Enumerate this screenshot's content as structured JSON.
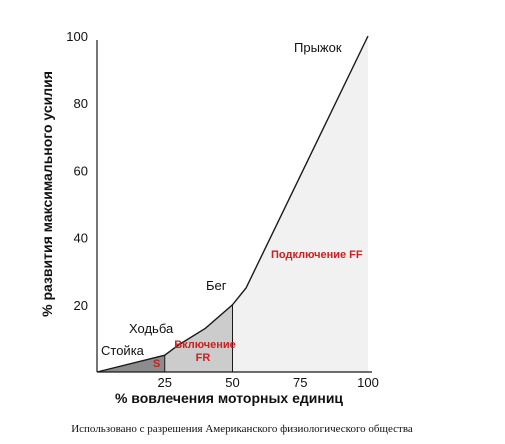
{
  "chart_data": {
    "type": "area",
    "xlabel": "% вовлечения моторных единиц",
    "ylabel": "% развития максимального усилия",
    "xlim": [
      0,
      100
    ],
    "ylim": [
      0,
      100
    ],
    "x_ticks": [
      25,
      50,
      75,
      100
    ],
    "y_ticks": [
      20,
      40,
      60,
      80,
      100
    ],
    "series": [
      {
        "x": [
          0,
          25,
          30,
          40,
          50,
          55,
          100
        ],
        "y": [
          0,
          5,
          8,
          13,
          20,
          25,
          100
        ]
      }
    ],
    "regions": [
      {
        "label": "S",
        "x_from": 0,
        "x_to": 25,
        "color": "#8c8c8c"
      },
      {
        "label": "Включение FR",
        "x_from": 25,
        "x_to": 50,
        "color": "#cccccc"
      },
      {
        "label": "Подключение FF",
        "x_from": 50,
        "x_to": 100,
        "color": "#f1f1f1"
      }
    ],
    "annotations": {
      "stance": "Стойка",
      "walk": "Ходьба",
      "run": "Бег",
      "jump": "Прыжок",
      "s_label": "S",
      "fr_line1": "Включение",
      "fr_line2": "FR",
      "ff_label": "Подключение FF"
    },
    "annotation_color": "#cc1f1f",
    "caption": "Использовано с разрешения Американского физиологического общества"
  }
}
